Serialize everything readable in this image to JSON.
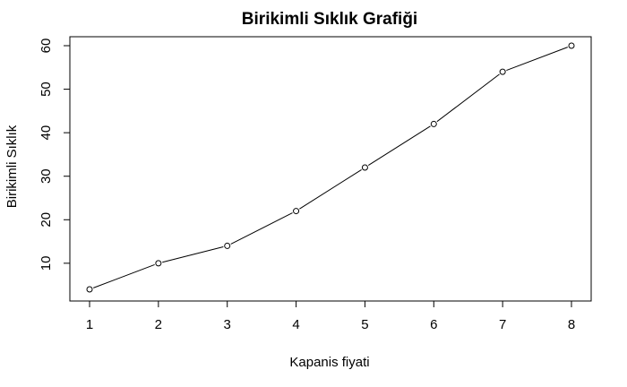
{
  "chart_data": {
    "type": "line",
    "title": "Birikimli Sıklık Grafiği",
    "xlabel": "Kapanis fiyati",
    "ylabel": "Birikimli Sıklık",
    "x": [
      1,
      2,
      3,
      4,
      5,
      6,
      7,
      8
    ],
    "series": [
      {
        "values": [
          4,
          10,
          14,
          22,
          32,
          42,
          54,
          60
        ]
      }
    ],
    "xticks": [
      "1",
      "2",
      "3",
      "4",
      "5",
      "6",
      "7",
      "8"
    ],
    "yticks": [
      "10",
      "20",
      "30",
      "40",
      "50",
      "60"
    ],
    "xlim": [
      1,
      8
    ],
    "ylim": [
      4,
      60
    ],
    "grid": false,
    "marker": "open-circle",
    "line_color": "#000000"
  }
}
